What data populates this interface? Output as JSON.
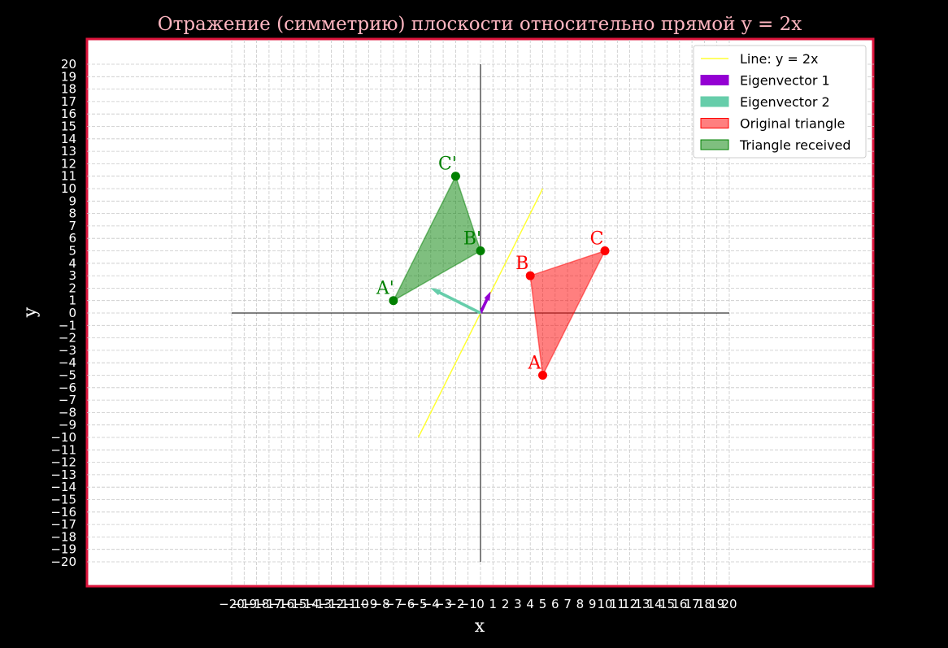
{
  "chart_data": {
    "type": "line",
    "title": "Отражение (симметрию) плоскости относительно прямой y = 2x",
    "xlabel": "x",
    "ylabel": "y",
    "xlim": [
      -20,
      20
    ],
    "ylim": [
      -20,
      20
    ],
    "grid": true,
    "x_ticks": [
      -20,
      -19,
      -18,
      -17,
      -16,
      -15,
      -14,
      -13,
      -12,
      -11,
      -10,
      -9,
      -8,
      -7,
      -6,
      -5,
      -4,
      -3,
      -2,
      -1,
      0,
      1,
      2,
      3,
      4,
      5,
      6,
      7,
      8,
      9,
      10,
      11,
      12,
      13,
      14,
      15,
      16,
      17,
      18,
      19,
      20
    ],
    "y_ticks": [
      -20,
      -19,
      -18,
      -17,
      -16,
      -15,
      -14,
      -13,
      -12,
      -11,
      -10,
      -9,
      -8,
      -7,
      -6,
      -5,
      -4,
      -3,
      -2,
      -1,
      0,
      1,
      2,
      3,
      4,
      5,
      6,
      7,
      8,
      9,
      10,
      11,
      12,
      13,
      14,
      15,
      16,
      17,
      18,
      19,
      20
    ],
    "legend_position": "top-right",
    "line": {
      "name": "Line: y = 2x",
      "color": "#ffff33",
      "x": [
        -5,
        5
      ],
      "y": [
        -10,
        10
      ]
    },
    "eigenvectors": [
      {
        "name": "Eigenvector 1",
        "color": "#9400d3",
        "from": [
          0,
          0
        ],
        "to": [
          0.8,
          1.7
        ]
      },
      {
        "name": "Eigenvector 2",
        "color": "#66cdaa",
        "from": [
          0,
          0
        ],
        "to": [
          -4,
          2
        ]
      }
    ],
    "triangles": [
      {
        "name": "Original triangle",
        "color": "#ff0000",
        "fill": "rgba(255,0,0,0.5)",
        "points": [
          {
            "label": "A",
            "x": 5,
            "y": -5
          },
          {
            "label": "B",
            "x": 4,
            "y": 3
          },
          {
            "label": "C",
            "x": 10,
            "y": 5
          }
        ]
      },
      {
        "name": "Triangle received",
        "color": "#008000",
        "fill": "rgba(0,128,0,0.5)",
        "points": [
          {
            "label": "A'",
            "x": -7,
            "y": 1
          },
          {
            "label": "B'",
            "x": 0,
            "y": 5
          },
          {
            "label": "C'",
            "x": -2,
            "y": 11
          }
        ]
      }
    ]
  }
}
